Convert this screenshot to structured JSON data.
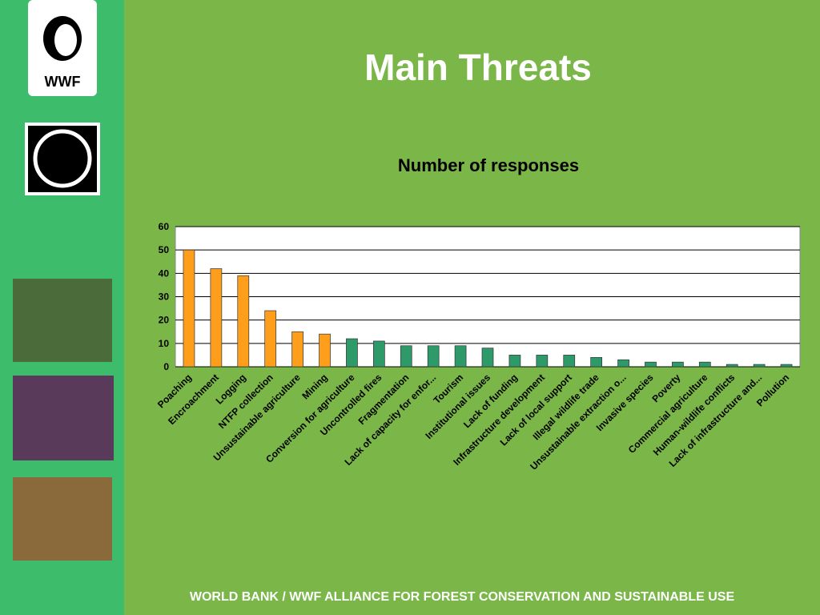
{
  "logo_text": "WWF",
  "chart_data": {
    "type": "bar",
    "title": "Main Threats",
    "subtitle": "Number of responses",
    "categories": [
      "Poaching",
      "Encroachment",
      "Logging",
      "NTFP collection",
      "Unsustainable agriculture",
      "Mining",
      "Conversion for agriculture",
      "Uncontrolled fires",
      "Fragmentation",
      "Lack of capacity for enfor...",
      "Tourism",
      "Institutional issues",
      "Lack of funding",
      "Infrastructure development",
      "Lack of local support",
      "Illegal wildlife trade",
      "Unsustainable extraction o...",
      "Invasive species",
      "Poverty",
      "Commercial agriculture",
      "Human-wildlife conflicts",
      "Lack of infrastructure and...",
      "Pollution"
    ],
    "values": [
      50,
      42,
      39,
      24,
      15,
      14,
      12,
      11,
      9,
      9,
      9,
      8,
      5,
      5,
      5,
      4,
      3,
      2,
      2,
      2,
      1,
      1,
      1
    ],
    "colors": [
      "#ff9e1b",
      "#ff9e1b",
      "#ff9e1b",
      "#ff9e1b",
      "#ff9e1b",
      "#ff9e1b",
      "#2e9a6a",
      "#2e9a6a",
      "#2e9a6a",
      "#2e9a6a",
      "#2e9a6a",
      "#2e9a6a",
      "#2e9a6a",
      "#2e9a6a",
      "#2e9a6a",
      "#2e9a6a",
      "#2e9a6a",
      "#2e9a6a",
      "#2e9a6a",
      "#2e9a6a",
      "#2e9a6a",
      "#2e9a6a",
      "#2e9a6a"
    ],
    "ylim": [
      0,
      60
    ],
    "yticks": [
      0,
      10,
      20,
      30,
      40,
      50,
      60
    ],
    "grid": true
  },
  "footer": "WORLD BANK / WWF ALLIANCE FOR FOREST CONSERVATION AND SUSTAINABLE USE"
}
